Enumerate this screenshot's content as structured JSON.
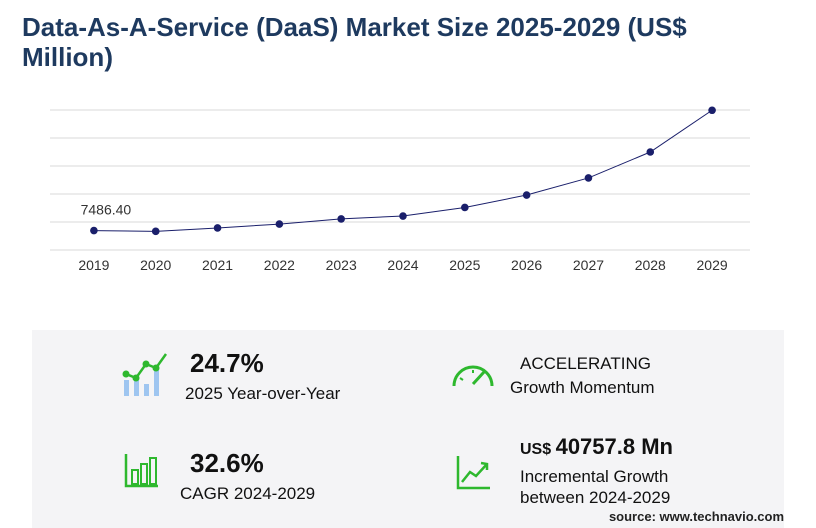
{
  "chart_data": {
    "type": "line",
    "title": "Data-As-A-Service (DaaS) Market Size 2025-2029 (US$ Million)",
    "x": [
      "2019",
      "2020",
      "2021",
      "2022",
      "2023",
      "2024",
      "2025",
      "2026",
      "2027",
      "2028",
      "2029"
    ],
    "values": [
      7486.4,
      7200,
      8500,
      10000,
      12000,
      13100,
      16400,
      21200,
      27800,
      37800,
      53900
    ],
    "value_labels": [
      "7486.40",
      null,
      null,
      null,
      null,
      null,
      null,
      null,
      null,
      null,
      null
    ],
    "color": "#1a1f6b",
    "ylim": [
      0,
      54000
    ],
    "grid": true
  },
  "kpis": [
    {
      "value": "24.7%",
      "label": "2025 Year-over-Year"
    },
    {
      "value": "ACCELERATING",
      "label": "Growth Momentum"
    },
    {
      "value": "32.6%",
      "label": "CAGR 2024-2029"
    },
    {
      "prefix": "US$",
      "value": "40757.8 Mn",
      "label": "Incremental Growth between 2024-2029"
    }
  ],
  "source": "source: www.technavio.com"
}
